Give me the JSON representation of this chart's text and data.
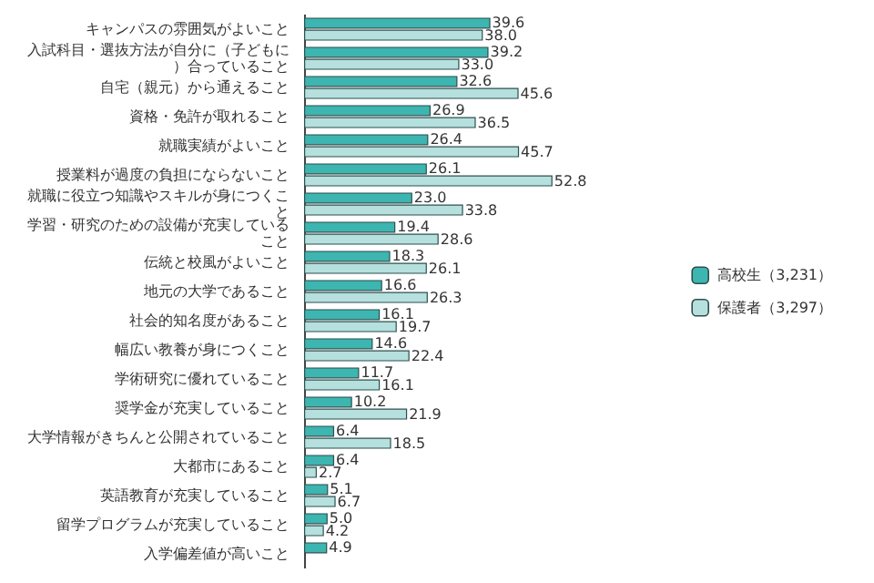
{
  "chart_data": {
    "type": "bar",
    "orientation": "horizontal",
    "legend": "right",
    "categories": [
      "キャンパスの雰囲気がよいこと",
      "入試科目・選抜方法が自分に（子どもに）合っていること",
      "自宅（親元）から通えること",
      "資格・免許が取れること",
      "就職実績がよいこと",
      "授業料が過度の負担にならないこと",
      "就職に役立つ知識やスキルが身につくこと",
      "学習・研究のための設備が充実していること",
      "伝統と校風がよいこと",
      "地元の大学であること",
      "社会的知名度があること",
      "幅広い教養が身につくこと",
      "学術研究に優れていること",
      "奨学金が充実していること",
      "大学情報がきちんと公開されていること",
      "大都市にあること",
      "英語教育が充実していること",
      "留学プログラムが充実していること",
      "入学偏差値が高いこと"
    ],
    "series": [
      {
        "name": "高校生（3,231）",
        "color": "#3db5b0",
        "values": [
          39.6,
          39.2,
          32.6,
          26.9,
          26.4,
          26.1,
          23.0,
          19.4,
          18.3,
          16.6,
          16.1,
          14.6,
          11.7,
          10.2,
          6.4,
          6.4,
          5.1,
          5.0,
          4.9
        ],
        "value_labels": [
          "39.6",
          "39.2",
          "32.6",
          "26.9",
          "26.4",
          "26.1",
          "23.0",
          "19.4",
          "18.3",
          "16.6",
          "16.1",
          "14.6",
          "11.7",
          "10.2",
          "6.4",
          "6.4",
          "5.1",
          "5.0",
          "4.9"
        ]
      },
      {
        "name": "保護者（3,297）",
        "color": "#b5e0de",
        "values": [
          38.0,
          33.0,
          45.6,
          36.5,
          45.7,
          52.8,
          33.8,
          28.6,
          26.1,
          26.3,
          19.7,
          22.4,
          16.1,
          21.9,
          18.5,
          2.7,
          6.7,
          4.2,
          null
        ],
        "value_labels": [
          "38.0",
          "33.0",
          "45.6",
          "36.5",
          "45.7",
          "52.8",
          "33.8",
          "28.6",
          "26.1",
          "26.3",
          "19.7",
          "22.4",
          "16.1",
          "21.9",
          "18.5",
          "2.7",
          "6.7",
          "4.2",
          null
        ]
      }
    ]
  }
}
